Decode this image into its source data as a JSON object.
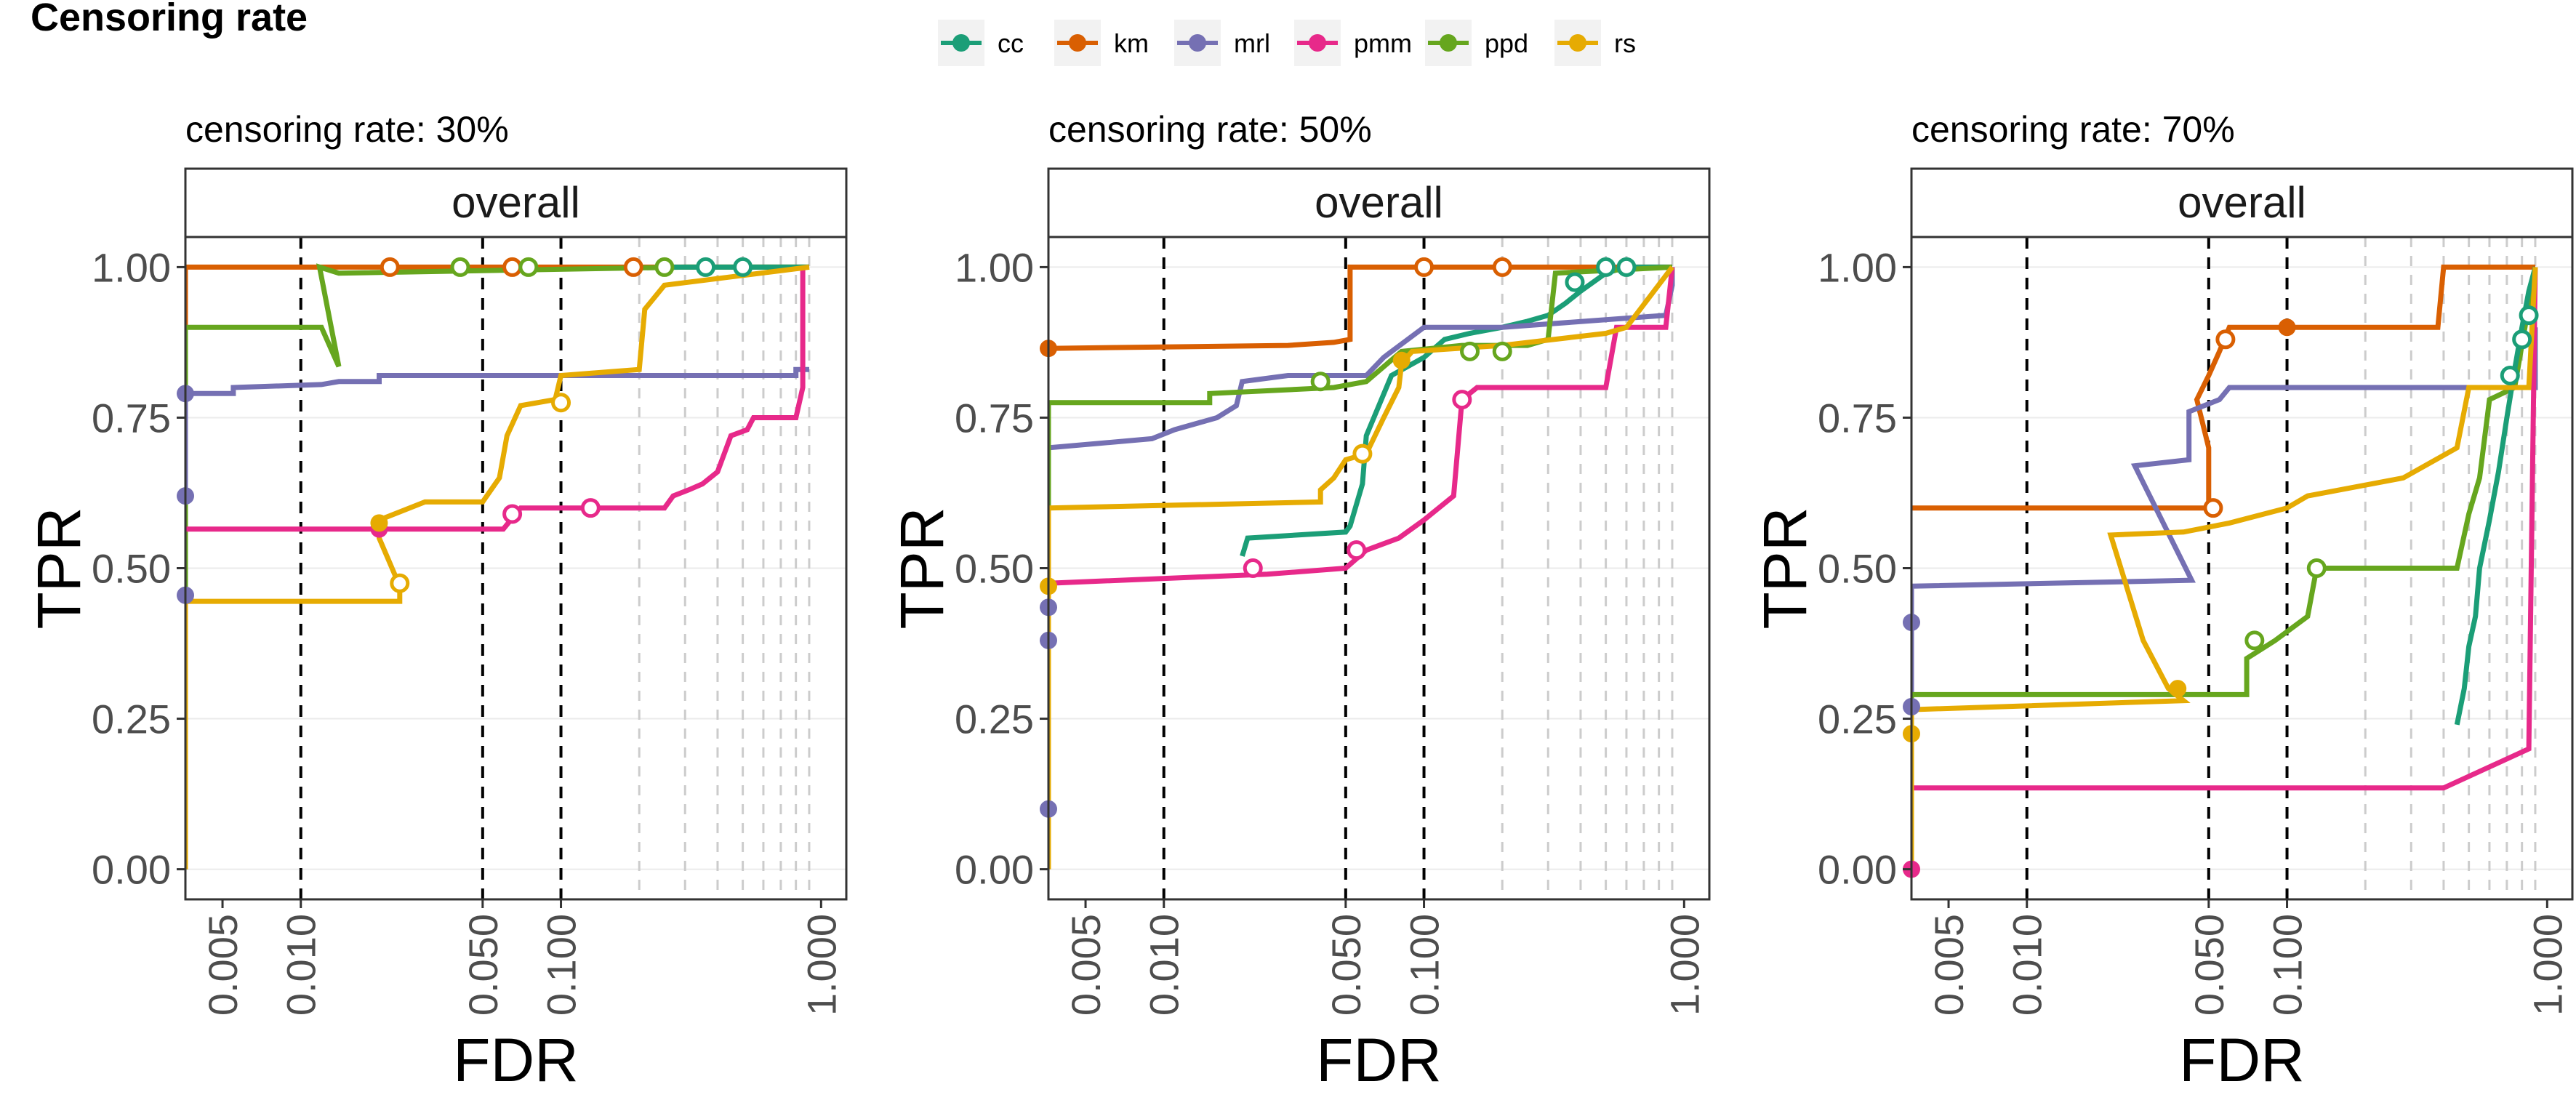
{
  "figure": {
    "title": "Censoring rate",
    "legend": [
      {
        "name": "cc",
        "color": "#1B9E77"
      },
      {
        "name": "km",
        "color": "#D95F02"
      },
      {
        "name": "mrl",
        "color": "#7570B3"
      },
      {
        "name": "pmm",
        "color": "#E7298A"
      },
      {
        "name": "ppd",
        "color": "#66A61E"
      },
      {
        "name": "rs",
        "color": "#E6AB02"
      }
    ]
  },
  "chart_data": [
    {
      "type": "line",
      "title": "censoring rate: 30%",
      "strip": "overall",
      "xlabel": "FDR",
      "ylabel": "TPR",
      "xscale": "log10",
      "xlim": [
        0.0036,
        1.25
      ],
      "ylim": [
        -0.05,
        1.05
      ],
      "x_ticks": [
        "0.005",
        "0.010",
        "0.050",
        "0.100",
        "1.000"
      ],
      "y_ticks": [
        "0.00",
        "0.25",
        "0.50",
        "0.75",
        "1.00"
      ],
      "reference_lines_dashed": [
        0.01,
        0.05,
        0.1
      ],
      "reference_lines_light": [
        0.2,
        0.3,
        0.4,
        0.5,
        0.6,
        0.7,
        0.8,
        0.9
      ],
      "series": [
        {
          "name": "km",
          "x": [
            0.0036,
            0.0036,
            0.9
          ],
          "y": [
            0.0,
            1.0,
            1.0
          ],
          "open": [
            [
              0.022,
              1.0
            ],
            [
              0.065,
              1.0
            ],
            [
              0.19,
              1.0
            ]
          ],
          "filled": []
        },
        {
          "name": "ppd",
          "x": [
            0.0036,
            0.0036,
            0.012,
            0.014,
            0.0118,
            0.014,
            0.3,
            0.85,
            0.9
          ],
          "y": [
            0.0,
            0.9,
            0.9,
            0.835,
            1.0,
            0.99,
            1.0,
            1.0,
            1.0
          ],
          "open": [
            [
              0.041,
              1.0
            ],
            [
              0.075,
              1.0
            ],
            [
              0.25,
              1.0
            ]
          ],
          "filled": []
        },
        {
          "name": "cc",
          "x": [
            0.25,
            0.9
          ],
          "y": [
            1.0,
            1.0
          ],
          "open": [
            [
              0.36,
              1.0
            ],
            [
              0.5,
              1.0
            ]
          ],
          "filled": []
        },
        {
          "name": "mrl",
          "x": [
            0.0036,
            0.0036,
            0.0055,
            0.0055,
            0.012,
            0.014,
            0.02,
            0.02,
            0.8,
            0.8,
            0.9
          ],
          "y": [
            0.62,
            0.79,
            0.79,
            0.8,
            0.805,
            0.81,
            0.81,
            0.82,
            0.82,
            0.83,
            0.83
          ],
          "open": [],
          "filled": [
            [
              0.0036,
              0.79
            ],
            [
              0.0036,
              0.62
            ],
            [
              0.0036,
              0.455
            ]
          ]
        },
        {
          "name": "pmm",
          "x": [
            0.0036,
            0.06,
            0.07,
            0.25,
            0.27,
            0.31,
            0.35,
            0.4,
            0.45,
            0.52,
            0.55,
            0.8,
            0.85,
            0.85
          ],
          "y": [
            0.565,
            0.565,
            0.6,
            0.6,
            0.62,
            0.63,
            0.64,
            0.66,
            0.72,
            0.73,
            0.75,
            0.75,
            0.8,
            1.0
          ],
          "open": [
            [
              0.065,
              0.59
            ],
            [
              0.13,
              0.6
            ]
          ],
          "filled": [
            [
              0.02,
              0.565
            ]
          ]
        },
        {
          "name": "rs",
          "x": [
            0.0036,
            0.0036,
            0.024,
            0.024,
            0.02,
            0.02,
            0.03,
            0.05,
            0.058,
            0.062,
            0.07,
            0.095,
            0.1,
            0.2,
            0.21,
            0.25,
            0.9
          ],
          "y": [
            0.0,
            0.445,
            0.445,
            0.47,
            0.55,
            0.58,
            0.61,
            0.61,
            0.65,
            0.72,
            0.77,
            0.78,
            0.82,
            0.83,
            0.93,
            0.97,
            1.0
          ],
          "open": [
            [
              0.024,
              0.475
            ],
            [
              0.1,
              0.775
            ]
          ],
          "filled": [
            [
              0.02,
              0.575
            ]
          ]
        }
      ]
    },
    {
      "type": "line",
      "title": "censoring rate: 50%",
      "strip": "overall",
      "xlabel": "FDR",
      "ylabel": "TPR",
      "xscale": "log10",
      "xlim": [
        0.0036,
        1.25
      ],
      "ylim": [
        -0.05,
        1.05
      ],
      "x_ticks": [
        "0.005",
        "0.010",
        "0.050",
        "0.100",
        "1.000"
      ],
      "y_ticks": [
        "0.00",
        "0.25",
        "0.50",
        "0.75",
        "1.00"
      ],
      "reference_lines_dashed": [
        0.01,
        0.05,
        0.1
      ],
      "reference_lines_light": [
        0.2,
        0.3,
        0.4,
        0.5,
        0.6,
        0.7,
        0.8,
        0.9
      ],
      "series": [
        {
          "name": "km",
          "x": [
            0.0036,
            0.0036,
            0.03,
            0.045,
            0.052,
            0.052,
            0.9
          ],
          "y": [
            0.86,
            0.865,
            0.87,
            0.875,
            0.88,
            1.0,
            1.0
          ],
          "open": [
            [
              0.1,
              1.0
            ],
            [
              0.2,
              1.0
            ]
          ],
          "filled": [
            [
              0.0036,
              0.865
            ]
          ]
        },
        {
          "name": "cc",
          "x": [
            0.02,
            0.021,
            0.05,
            0.052,
            0.058,
            0.06,
            0.075,
            0.1,
            0.12,
            0.15,
            0.2,
            0.25,
            0.3,
            0.35,
            0.4,
            0.5,
            0.6,
            0.85,
            0.9
          ],
          "y": [
            0.52,
            0.55,
            0.56,
            0.57,
            0.64,
            0.72,
            0.82,
            0.85,
            0.88,
            0.89,
            0.9,
            0.91,
            0.92,
            0.94,
            0.96,
            0.99,
            1.0,
            1.0,
            1.0
          ],
          "open": [
            [
              0.38,
              0.975
            ],
            [
              0.5,
              1.0
            ],
            [
              0.6,
              1.0
            ]
          ],
          "filled": []
        },
        {
          "name": "mrl",
          "x": [
            0.0036,
            0.0036,
            0.009,
            0.011,
            0.016,
            0.019,
            0.02,
            0.03,
            0.06,
            0.07,
            0.1,
            0.2,
            0.85,
            0.9,
            0.9
          ],
          "y": [
            0.1,
            0.7,
            0.715,
            0.73,
            0.75,
            0.77,
            0.81,
            0.82,
            0.82,
            0.85,
            0.9,
            0.9,
            0.92,
            0.97,
            1.0
          ],
          "open": [],
          "filled": [
            [
              0.0036,
              0.435
            ],
            [
              0.0036,
              0.38
            ],
            [
              0.0036,
              0.1
            ]
          ]
        },
        {
          "name": "ppd",
          "x": [
            0.0036,
            0.0036,
            0.015,
            0.015,
            0.045,
            0.06,
            0.082,
            0.14,
            0.25,
            0.3,
            0.32,
            0.9
          ],
          "y": [
            0.5,
            0.775,
            0.775,
            0.79,
            0.8,
            0.81,
            0.86,
            0.87,
            0.87,
            0.88,
            0.99,
            1.0
          ],
          "open": [
            [
              0.04,
              0.81
            ],
            [
              0.15,
              0.86
            ],
            [
              0.2,
              0.86
            ]
          ],
          "filled": []
        },
        {
          "name": "pmm",
          "x": [
            0.0036,
            0.0036,
            0.025,
            0.05,
            0.06,
            0.08,
            0.1,
            0.13,
            0.14,
            0.16,
            0.5,
            0.55,
            0.85,
            0.9
          ],
          "y": [
            0.47,
            0.475,
            0.49,
            0.5,
            0.53,
            0.55,
            0.58,
            0.62,
            0.78,
            0.8,
            0.8,
            0.9,
            0.9,
            1.0
          ],
          "open": [
            [
              0.022,
              0.5
            ],
            [
              0.055,
              0.53
            ],
            [
              0.14,
              0.78
            ]
          ],
          "filled": []
        },
        {
          "name": "rs",
          "x": [
            0.0036,
            0.0036,
            0.0036,
            0.04,
            0.04,
            0.045,
            0.05,
            0.06,
            0.07,
            0.08,
            0.082,
            0.09,
            0.2,
            0.5,
            0.6,
            0.9
          ],
          "y": [
            0.0,
            0.47,
            0.6,
            0.61,
            0.63,
            0.65,
            0.68,
            0.69,
            0.75,
            0.8,
            0.84,
            0.86,
            0.87,
            0.89,
            0.9,
            1.0
          ],
          "open": [
            [
              0.058,
              0.69
            ]
          ],
          "filled": [
            [
              0.082,
              0.845
            ],
            [
              0.0036,
              0.47
            ]
          ]
        }
      ]
    },
    {
      "type": "line",
      "title": "censoring rate: 70%",
      "strip": "overall",
      "xlabel": "FDR",
      "ylabel": "TPR",
      "xscale": "log10",
      "xlim": [
        0.0036,
        1.25
      ],
      "ylim": [
        -0.05,
        1.05
      ],
      "x_ticks": [
        "0.005",
        "0.010",
        "0.050",
        "0.100",
        "1.000"
      ],
      "y_ticks": [
        "0.00",
        "0.25",
        "0.50",
        "0.75",
        "1.00"
      ],
      "reference_lines_dashed": [
        0.01,
        0.05,
        0.1
      ],
      "reference_lines_light": [
        0.2,
        0.3,
        0.4,
        0.5,
        0.6,
        0.7,
        0.8,
        0.9
      ],
      "series": [
        {
          "name": "km",
          "x": [
            0.0036,
            0.0036,
            0.05,
            0.05,
            0.045,
            0.05,
            0.055,
            0.06,
            0.1,
            0.38,
            0.4,
            0.9
          ],
          "y": [
            0.6,
            0.6,
            0.6,
            0.7,
            0.78,
            0.82,
            0.86,
            0.9,
            0.9,
            0.9,
            1.0,
            1.0
          ],
          "open": [
            [
              0.052,
              0.6
            ],
            [
              0.058,
              0.88
            ]
          ],
          "filled": [
            [
              0.1,
              0.9
            ]
          ]
        },
        {
          "name": "mrl",
          "x": [
            0.0036,
            0.0036,
            0.043,
            0.026,
            0.042,
            0.042,
            0.055,
            0.06,
            0.9,
            0.9
          ],
          "y": [
            0.0,
            0.47,
            0.48,
            0.67,
            0.68,
            0.76,
            0.78,
            0.8,
            0.8,
            0.9
          ],
          "open": [],
          "filled": [
            [
              0.0036,
              0.41
            ],
            [
              0.0036,
              0.27
            ]
          ]
        },
        {
          "name": "pmm",
          "x": [
            0.0036,
            0.0036,
            0.4,
            0.85,
            0.9
          ],
          "y": [
            0.0,
            0.135,
            0.135,
            0.2,
            1.0
          ],
          "open": [],
          "filled": [
            [
              0.0036,
              0.0
            ]
          ]
        },
        {
          "name": "ppd",
          "x": [
            0.0036,
            0.0036,
            0.07,
            0.07,
            0.09,
            0.12,
            0.13,
            0.45,
            0.5,
            0.55,
            0.6,
            0.75,
            0.9
          ],
          "y": [
            0.25,
            0.29,
            0.29,
            0.35,
            0.38,
            0.42,
            0.5,
            0.5,
            0.59,
            0.65,
            0.78,
            0.8,
            1.0
          ],
          "open": [
            [
              0.075,
              0.38
            ],
            [
              0.13,
              0.5
            ]
          ],
          "filled": []
        },
        {
          "name": "cc",
          "x": [
            0.45,
            0.48,
            0.5,
            0.53,
            0.55,
            0.6,
            0.65,
            0.7,
            0.75,
            0.8,
            0.85,
            0.9
          ],
          "y": [
            0.24,
            0.3,
            0.37,
            0.42,
            0.5,
            0.58,
            0.66,
            0.75,
            0.83,
            0.9,
            0.96,
            1.0
          ],
          "open": [
            [
              0.72,
              0.82
            ],
            [
              0.8,
              0.88
            ],
            [
              0.85,
              0.92
            ]
          ],
          "filled": []
        },
        {
          "name": "rs",
          "x": [
            0.0036,
            0.0036,
            0.04,
            0.035,
            0.028,
            0.021,
            0.04,
            0.06,
            0.1,
            0.12,
            0.28,
            0.45,
            0.5,
            0.85,
            0.9
          ],
          "y": [
            0.0,
            0.265,
            0.28,
            0.3,
            0.38,
            0.555,
            0.56,
            0.575,
            0.6,
            0.62,
            0.65,
            0.7,
            0.8,
            0.8,
            1.0
          ],
          "open": [],
          "filled": [
            [
              0.038,
              0.3
            ],
            [
              0.0036,
              0.225
            ]
          ]
        }
      ]
    }
  ]
}
